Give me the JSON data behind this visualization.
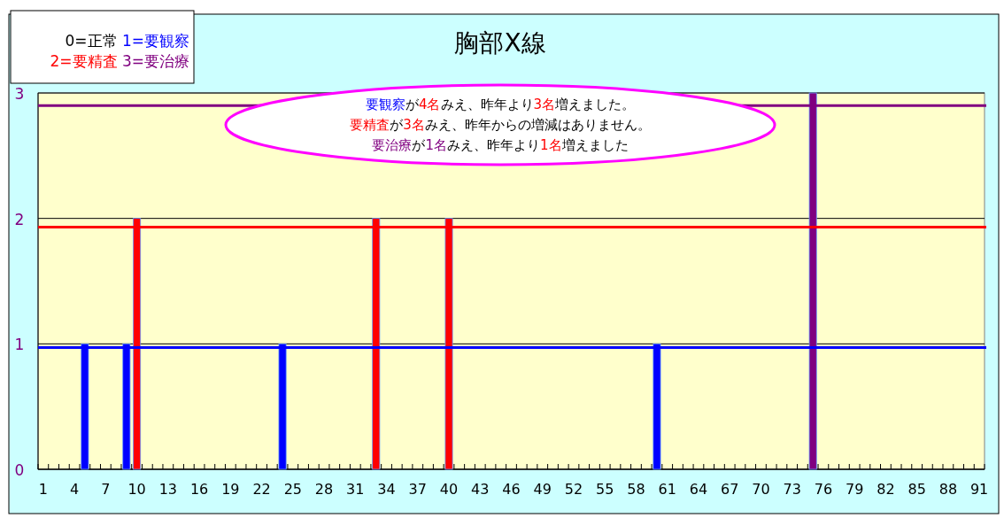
{
  "chart_data": {
    "type": "bar",
    "title": "胸部X線",
    "categories": [
      "1",
      null,
      null,
      "4",
      null,
      null,
      "7",
      null,
      null,
      "10",
      null,
      null,
      "13",
      null,
      null,
      "16",
      null,
      null,
      "19",
      null,
      null,
      "22",
      null,
      null,
      "25",
      null,
      null,
      "28",
      null,
      null,
      "31",
      null,
      null,
      "34",
      null,
      null,
      "37",
      null,
      null,
      "40",
      null,
      null,
      "43",
      null,
      null,
      "46",
      null,
      null,
      "49",
      null,
      null,
      "52",
      null,
      null,
      "55",
      null,
      null,
      "58",
      null,
      null,
      "61",
      null,
      null,
      "64",
      null,
      null,
      "67",
      null,
      null,
      "70",
      null,
      null,
      "73",
      null,
      null,
      "76",
      null,
      null,
      "79",
      null,
      null,
      "82",
      null,
      null,
      "85",
      null,
      null,
      "88",
      null,
      null,
      "91"
    ],
    "series": [
      {
        "name": "1=要観察",
        "color": "#0000ff",
        "values": [
          null,
          null,
          null,
          null,
          1,
          null,
          null,
          null,
          1,
          null,
          null,
          null,
          null,
          null,
          null,
          null,
          null,
          null,
          null,
          null,
          null,
          null,
          null,
          1,
          null,
          null,
          null,
          null,
          null,
          null,
          null,
          null,
          null,
          null,
          null,
          null,
          null,
          null,
          null,
          null,
          null,
          null,
          null,
          null,
          null,
          null,
          null,
          null,
          null,
          null,
          null,
          null,
          null,
          null,
          null,
          null,
          null,
          null,
          null,
          1,
          null,
          null,
          null,
          null,
          null,
          null,
          null,
          null,
          null,
          null,
          null,
          null,
          null,
          null,
          null,
          null,
          null,
          null,
          null,
          null,
          null,
          null,
          null,
          null,
          null,
          null,
          null,
          null,
          null,
          null,
          null
        ]
      },
      {
        "name": "2=要精査",
        "color": "#ff0000",
        "values": [
          null,
          null,
          null,
          null,
          null,
          null,
          null,
          null,
          null,
          2,
          null,
          null,
          null,
          null,
          null,
          null,
          null,
          null,
          null,
          null,
          null,
          null,
          null,
          null,
          null,
          null,
          null,
          null,
          null,
          null,
          null,
          null,
          2,
          null,
          null,
          null,
          null,
          null,
          null,
          2,
          null,
          null,
          null,
          null,
          null,
          null,
          null,
          null,
          null,
          null,
          null,
          null,
          null,
          null,
          null,
          null,
          null,
          null,
          null,
          null,
          null,
          null,
          null,
          null,
          null,
          null,
          null,
          null,
          null,
          null,
          null,
          null,
          null,
          null,
          null,
          null,
          null,
          null,
          null,
          null,
          null,
          null,
          null,
          null,
          null,
          null,
          null,
          null,
          null,
          null,
          null
        ]
      },
      {
        "name": "3=要治療",
        "color": "#800080",
        "values": [
          null,
          null,
          null,
          null,
          null,
          null,
          null,
          null,
          null,
          null,
          null,
          null,
          null,
          null,
          null,
          null,
          null,
          null,
          null,
          null,
          null,
          null,
          null,
          null,
          null,
          null,
          null,
          null,
          null,
          null,
          null,
          null,
          null,
          null,
          null,
          null,
          null,
          null,
          null,
          null,
          null,
          null,
          null,
          null,
          null,
          null,
          null,
          null,
          null,
          null,
          null,
          null,
          null,
          null,
          null,
          null,
          null,
          null,
          null,
          null,
          null,
          null,
          null,
          null,
          null,
          null,
          null,
          null,
          null,
          null,
          null,
          null,
          null,
          null,
          3,
          null,
          null,
          null,
          null,
          null,
          null,
          null,
          null,
          null,
          null,
          null,
          null,
          null,
          null,
          null,
          null
        ]
      }
    ],
    "ylim": [
      0,
      3
    ],
    "yticks": [
      0,
      1,
      2,
      3
    ],
    "grid": "y",
    "legend": "top left",
    "ref_lines": [
      {
        "axis": "y",
        "value": 0.97,
        "color": "#0000ff"
      },
      {
        "axis": "y",
        "value": 1.93,
        "color": "#ff0000"
      },
      {
        "axis": "y",
        "value": 2.9,
        "color": "#800080"
      }
    ],
    "annotations": [
      "0=正常",
      "要観察",
      "が",
      "4名",
      "みえ、昨年より",
      "3名",
      "増えました。",
      "要精査",
      "が",
      "3名",
      "みえ、昨年からの増減はありません。",
      "要治療",
      "が",
      "1名",
      "みえ、昨年より",
      "1名",
      "増えました"
    ]
  }
}
